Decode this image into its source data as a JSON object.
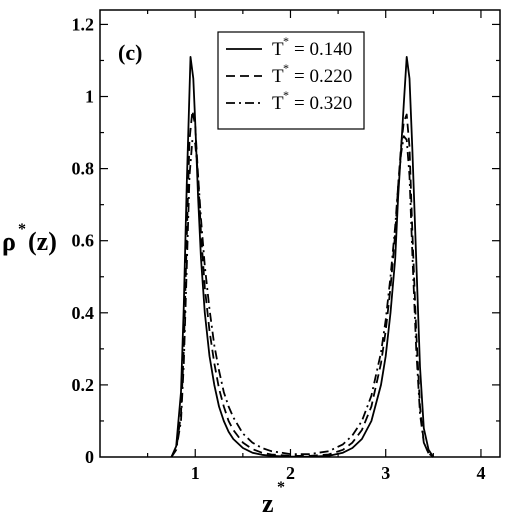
{
  "chart_data": {
    "type": "line",
    "panel_label": "(c)",
    "xlabel": {
      "base": "z",
      "sup": "*"
    },
    "ylabel": {
      "base": "ρ",
      "sup": "*",
      "suffix": "(z)"
    },
    "xlim": [
      0,
      4.2
    ],
    "ylim": [
      0,
      1.24
    ],
    "xticks": [
      1,
      2,
      3,
      4
    ],
    "xtick_labels": [
      "1",
      "2",
      "3",
      "4"
    ],
    "yticks": [
      0,
      0.2,
      0.4,
      0.6,
      0.8,
      1.0,
      1.2
    ],
    "ytick_labels": [
      "0",
      "0.2",
      "0.4",
      "0.6",
      "0.8",
      "1",
      "1.2"
    ],
    "grid": false,
    "legend_position": "top-right",
    "series": [
      {
        "name": "T* = 0.140",
        "legend_prefix": "T",
        "legend_sup": "*",
        "legend_value": "= 0.140",
        "dash": "solid",
        "x": [
          0.75,
          0.8,
          0.85,
          0.88,
          0.91,
          0.95,
          0.98,
          1.0,
          1.03,
          1.06,
          1.1,
          1.15,
          1.2,
          1.25,
          1.3,
          1.35,
          1.4,
          1.5,
          1.6,
          1.7,
          1.8,
          2.0,
          2.2,
          2.4,
          2.55,
          2.65,
          2.75,
          2.85,
          2.95,
          3.0,
          3.05,
          3.1,
          3.13,
          3.16,
          3.19,
          3.22,
          3.25,
          3.28,
          3.32,
          3.36,
          3.4,
          3.45,
          3.5
        ],
        "y": [
          0.0,
          0.03,
          0.18,
          0.42,
          0.75,
          1.11,
          1.05,
          0.93,
          0.72,
          0.55,
          0.4,
          0.28,
          0.2,
          0.14,
          0.1,
          0.07,
          0.05,
          0.025,
          0.012,
          0.006,
          0.003,
          0.001,
          0.001,
          0.003,
          0.012,
          0.025,
          0.05,
          0.1,
          0.2,
          0.28,
          0.4,
          0.55,
          0.72,
          0.85,
          0.98,
          1.11,
          1.05,
          0.85,
          0.55,
          0.25,
          0.08,
          0.02,
          0.0
        ]
      },
      {
        "name": "T* = 0.220",
        "legend_prefix": "T",
        "legend_sup": "*",
        "legend_value": "= 0.220",
        "dash": "dashed",
        "x": [
          0.75,
          0.8,
          0.85,
          0.88,
          0.91,
          0.94,
          0.97,
          1.0,
          1.03,
          1.06,
          1.1,
          1.15,
          1.2,
          1.25,
          1.3,
          1.35,
          1.4,
          1.5,
          1.6,
          1.7,
          1.8,
          2.0,
          2.2,
          2.4,
          2.55,
          2.65,
          2.75,
          2.85,
          2.95,
          3.0,
          3.05,
          3.1,
          3.13,
          3.16,
          3.19,
          3.22,
          3.25,
          3.28,
          3.32,
          3.36,
          3.4,
          3.45,
          3.5
        ],
        "y": [
          0.0,
          0.02,
          0.12,
          0.3,
          0.6,
          0.88,
          0.96,
          0.92,
          0.78,
          0.62,
          0.47,
          0.35,
          0.26,
          0.19,
          0.14,
          0.1,
          0.075,
          0.04,
          0.022,
          0.012,
          0.007,
          0.003,
          0.003,
          0.007,
          0.02,
          0.04,
          0.075,
          0.14,
          0.26,
          0.35,
          0.47,
          0.62,
          0.75,
          0.86,
          0.93,
          0.95,
          0.86,
          0.62,
          0.35,
          0.14,
          0.04,
          0.01,
          0.0
        ]
      },
      {
        "name": "T* = 0.320",
        "legend_prefix": "T",
        "legend_sup": "*",
        "legend_value": "= 0.320",
        "dash": "dashdot",
        "x": [
          0.75,
          0.8,
          0.85,
          0.88,
          0.91,
          0.94,
          0.97,
          1.0,
          1.03,
          1.06,
          1.1,
          1.15,
          1.2,
          1.25,
          1.3,
          1.35,
          1.4,
          1.5,
          1.6,
          1.7,
          1.8,
          2.0,
          2.2,
          2.4,
          2.55,
          2.65,
          2.75,
          2.85,
          2.95,
          3.0,
          3.05,
          3.1,
          3.13,
          3.16,
          3.19,
          3.22,
          3.25,
          3.28,
          3.32,
          3.36,
          3.4,
          3.45,
          3.5
        ],
        "y": [
          0.0,
          0.02,
          0.1,
          0.26,
          0.52,
          0.78,
          0.88,
          0.87,
          0.78,
          0.66,
          0.53,
          0.41,
          0.31,
          0.24,
          0.18,
          0.14,
          0.11,
          0.065,
          0.04,
          0.025,
          0.016,
          0.008,
          0.008,
          0.016,
          0.035,
          0.06,
          0.1,
          0.17,
          0.29,
          0.38,
          0.5,
          0.64,
          0.75,
          0.84,
          0.89,
          0.88,
          0.78,
          0.56,
          0.3,
          0.12,
          0.04,
          0.01,
          0.0
        ]
      }
    ]
  }
}
